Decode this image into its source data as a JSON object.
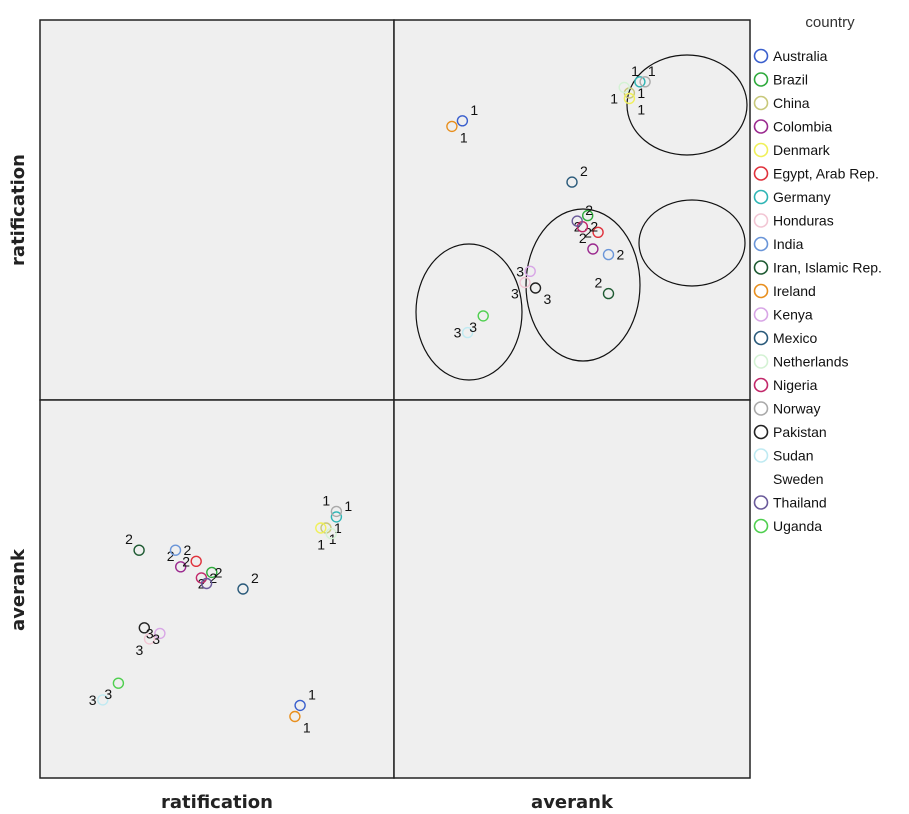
{
  "chart_data": {
    "type": "scatter",
    "subtype": "scatterplot-matrix",
    "variables": [
      "ratification",
      "averank"
    ],
    "row_labels": [
      "ratification",
      "averank"
    ],
    "column_labels": [
      "ratification",
      "averank"
    ],
    "legend": {
      "title": "country",
      "placement": "right",
      "entries": [
        {
          "name": "Australia",
          "color": "#3a5fcd"
        },
        {
          "name": "Brazil",
          "color": "#2eaa3c"
        },
        {
          "name": "China",
          "color": "#c8c87a"
        },
        {
          "name": "Colombia",
          "color": "#9b2a8f"
        },
        {
          "name": "Denmark",
          "color": "#f0f05a"
        },
        {
          "name": "Egypt, Arab Rep.",
          "color": "#e0323c"
        },
        {
          "name": "Germany",
          "color": "#2fb5b5"
        },
        {
          "name": "Honduras",
          "color": "#f2c6d4"
        },
        {
          "name": "India",
          "color": "#6a95d8"
        },
        {
          "name": "Iran, Islamic Rep.",
          "color": "#1e5a32"
        },
        {
          "name": "Ireland",
          "color": "#e88f1e"
        },
        {
          "name": "Kenya",
          "color": "#d8a6e6"
        },
        {
          "name": "Mexico",
          "color": "#2a5a7a"
        },
        {
          "name": "Netherlands",
          "color": "#d4f2d4"
        },
        {
          "name": "Nigeria",
          "color": "#c2286a"
        },
        {
          "name": "Norway",
          "color": "#aaaaaa"
        },
        {
          "name": "Pakistan",
          "color": "#222222"
        },
        {
          "name": "Sudan",
          "color": "#bfeaf2"
        },
        {
          "name": "Sweden",
          "color": "#ffffff"
        },
        {
          "name": "Thailand",
          "color": "#6a5a9a"
        },
        {
          "name": "Uganda",
          "color": "#4fcf4f"
        }
      ]
    },
    "points": [
      {
        "country": "Australia",
        "ratification": 5.6,
        "averank": 1.9,
        "cluster": "1"
      },
      {
        "country": "Brazil",
        "ratification": 3.9,
        "averank": 4.3,
        "cluster": "2"
      },
      {
        "country": "China",
        "ratification": 6.1,
        "averank": 5.1,
        "cluster": "1"
      },
      {
        "country": "Colombia",
        "ratification": 3.3,
        "averank": 4.4,
        "cluster": "2"
      },
      {
        "country": "Denmark",
        "ratification": 6.0,
        "averank": 5.1,
        "cluster": "1"
      },
      {
        "country": "Egypt, Arab Rep.",
        "ratification": 3.6,
        "averank": 4.5,
        "cluster": "2"
      },
      {
        "country": "Germany",
        "ratification": 6.3,
        "averank": 5.3,
        "cluster": "1"
      },
      {
        "country": "Honduras",
        "ratification": 2.7,
        "averank": 3.1,
        "cluster": "3"
      },
      {
        "country": "India",
        "ratification": 3.2,
        "averank": 4.7,
        "cluster": "2"
      },
      {
        "country": "Iran, Islamic Rep.",
        "ratification": 2.5,
        "averank": 4.7,
        "cluster": "2"
      },
      {
        "country": "Ireland",
        "ratification": 5.5,
        "averank": 1.7,
        "cluster": "1"
      },
      {
        "country": "Kenya",
        "ratification": 2.9,
        "averank": 3.2,
        "cluster": "3"
      },
      {
        "country": "Mexico",
        "ratification": 4.5,
        "averank": 4.0,
        "cluster": "2"
      },
      {
        "country": "Netherlands",
        "ratification": 6.2,
        "averank": 5.0,
        "cluster": "1"
      },
      {
        "country": "Nigeria",
        "ratification": 3.7,
        "averank": 4.2,
        "cluster": "2"
      },
      {
        "country": "Norway",
        "ratification": 6.3,
        "averank": 5.4,
        "cluster": "1"
      },
      {
        "country": "Pakistan",
        "ratification": 2.6,
        "averank": 3.3,
        "cluster": "3"
      },
      {
        "country": "Sudan",
        "ratification": 1.8,
        "averank": 2.0,
        "cluster": "3"
      },
      {
        "country": "Thailand",
        "ratification": 3.8,
        "averank": 4.1,
        "cluster": "2"
      },
      {
        "country": "Uganda",
        "ratification": 2.1,
        "averank": 2.3,
        "cluster": "3"
      }
    ],
    "annotations": "Hand-drawn ellipses enclose clusters 1, 2 and 3 in the top-right panel",
    "grid": false
  }
}
